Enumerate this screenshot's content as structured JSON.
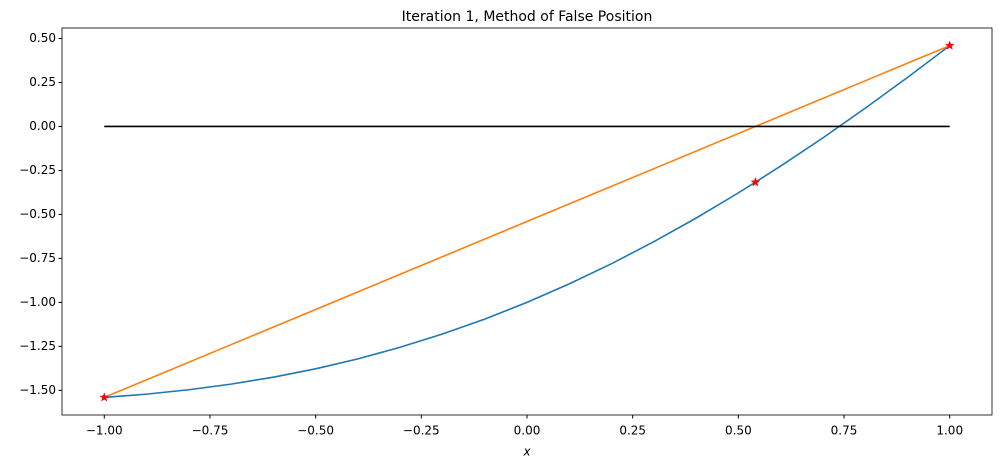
{
  "chart_data": {
    "type": "line",
    "title": "Iteration 1, Method of False Position",
    "xlabel": "x",
    "xlim": [
      -1.1,
      1.1
    ],
    "ylim": [
      -1.6403,
      0.5597
    ],
    "xticks": [
      {
        "value": -1,
        "label": "−1.00"
      },
      {
        "value": -0.75,
        "label": "−0.75"
      },
      {
        "value": -0.5,
        "label": "−0.50"
      },
      {
        "value": -0.25,
        "label": "−0.25"
      },
      {
        "value": 0,
        "label": "0.00"
      },
      {
        "value": 0.25,
        "label": "0.25"
      },
      {
        "value": 0.5,
        "label": "0.50"
      },
      {
        "value": 0.75,
        "label": "0.75"
      },
      {
        "value": 1,
        "label": "1.00"
      }
    ],
    "yticks": [
      {
        "value": 0.5,
        "label": "0.50"
      },
      {
        "value": 0.25,
        "label": "0.25"
      },
      {
        "value": 0,
        "label": "0.00"
      },
      {
        "value": -0.25,
        "label": "−0.25"
      },
      {
        "value": -0.5,
        "label": "−0.50"
      },
      {
        "value": -0.75,
        "label": "−0.75"
      },
      {
        "value": -1,
        "label": "−1.00"
      },
      {
        "value": -1.25,
        "label": "−1.25"
      },
      {
        "value": -1.5,
        "label": "−1.50"
      }
    ],
    "grid": false,
    "series": [
      {
        "color": "#1f77b4",
        "marker": "none",
        "x": [
          -1,
          -0.9,
          -0.8,
          -0.7,
          -0.6,
          -0.5,
          -0.4,
          -0.3,
          -0.2,
          -0.1,
          0,
          0.1,
          0.2,
          0.3,
          0.4,
          0.5,
          0.6,
          0.7,
          0.8,
          0.9,
          1
        ],
        "values": [
          -1.5403,
          -1.5216,
          -1.4967,
          -1.4648,
          -1.4253,
          -1.3776,
          -1.3211,
          -1.2553,
          -1.1801,
          -1.095,
          -1,
          -0.895,
          -0.7801,
          -0.6553,
          -0.5211,
          -0.3776,
          -0.2253,
          -0.0648,
          0.1033,
          0.2784,
          0.4597
        ]
      },
      {
        "color": "#ff7f0e",
        "marker": "none",
        "x": [
          -1,
          1
        ],
        "values": [
          -1.5403,
          0.4597
        ]
      },
      {
        "color": "#000000",
        "marker": "none",
        "x": [
          -1,
          1
        ],
        "values": [
          0,
          0
        ]
      },
      {
        "color": "#ff0000",
        "marker": "star",
        "linestyle": "none",
        "x": [
          -1,
          1,
          0.5403
        ],
        "values": [
          -1.5403,
          0.4597,
          -0.3173
        ]
      }
    ]
  }
}
